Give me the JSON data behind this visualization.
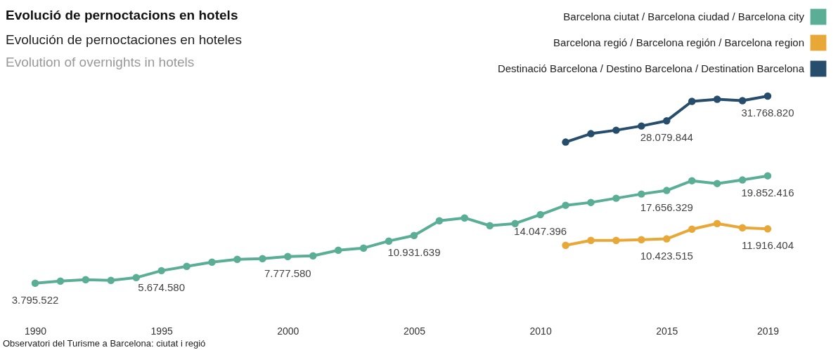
{
  "chart_data": {
    "type": "line",
    "title": "Evolució de pernoctacions en hotels",
    "subtitle": [
      "Evolución de pernoctaciones en hoteles",
      "Evolution of overnights in hotels"
    ],
    "annotations": [
      "Observatori del Turisme a Barcelona: ciutat i regió"
    ],
    "xlim": [
      1990,
      2019
    ],
    "xticks": [
      1990,
      1995,
      2000,
      2005,
      2010,
      2015,
      2019
    ],
    "tick_labels": "x",
    "grid": false,
    "legend": "top right",
    "marker": "circle",
    "line_style": "solid",
    "series": [
      {
        "name": "Barcelona ciutat / Barcelona ciudad / Barcelona city",
        "color": "#5aae96",
        "x": [
          1990,
          1991,
          1992,
          1993,
          1994,
          1995,
          1996,
          1997,
          1998,
          1999,
          2000,
          2001,
          2002,
          2003,
          2004,
          2005,
          2006,
          2007,
          2008,
          2009,
          2010,
          2011,
          2012,
          2013,
          2014,
          2015,
          2016,
          2017,
          2018,
          2019
        ],
        "values": [
          3795522,
          4110000,
          4320000,
          4220000,
          4630000,
          5674580,
          6310000,
          6950000,
          7370000,
          7470000,
          7777580,
          7890000,
          8730000,
          9050000,
          10100000,
          10931639,
          13140000,
          13560000,
          12400000,
          12720000,
          14047396,
          15450000,
          15870000,
          16500000,
          17130000,
          17656329,
          19120000,
          18700000,
          19230000,
          19852416
        ],
        "value_labels": [
          "3.795.522",
          null,
          null,
          null,
          null,
          "5.674.580",
          null,
          null,
          null,
          null,
          "7.777.580",
          null,
          null,
          null,
          null,
          "10.931.639",
          null,
          null,
          null,
          null,
          "14.047.396",
          null,
          null,
          null,
          null,
          "17.656.329",
          null,
          null,
          null,
          "19.852.416"
        ]
      },
      {
        "name": "Barcelona regió / Barcelona región / Barcelona region",
        "color": "#e8a838",
        "x": [
          2011,
          2012,
          2013,
          2014,
          2015,
          2016,
          2017,
          2018,
          2019
        ],
        "values": [
          9460000,
          10190000,
          10190000,
          10300000,
          10423515,
          11880000,
          12720000,
          12090000,
          11916404
        ],
        "value_labels": [
          null,
          null,
          null,
          null,
          "10.423.515",
          null,
          null,
          null,
          "11.916.404"
        ]
      },
      {
        "name": "Destinació Barcelona / Destino Barcelona / Destination Barcelona",
        "color": "#264d6b",
        "x": [
          2011,
          2012,
          2013,
          2014,
          2015,
          2016,
          2017,
          2018,
          2019
        ],
        "values": [
          24890000,
          26150000,
          26670000,
          27300000,
          28079844,
          30980000,
          31300000,
          31090000,
          31768820
        ],
        "value_labels": [
          null,
          null,
          null,
          null,
          "28.079.844",
          null,
          null,
          null,
          "31.768.820"
        ]
      }
    ]
  }
}
